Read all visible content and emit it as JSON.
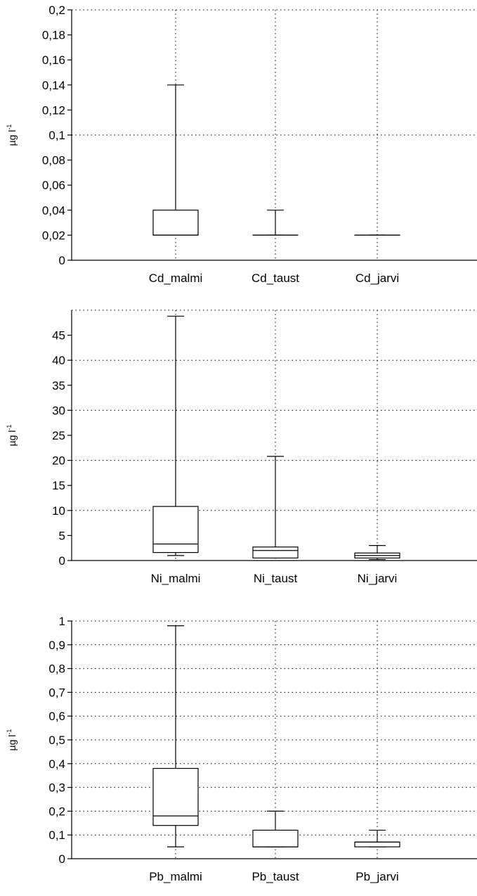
{
  "chart_data": [
    {
      "type": "box",
      "ylabel": "µg l",
      "ylabel_superscript": "-1",
      "ylim": [
        0,
        0.2
      ],
      "yticks": [
        {
          "value": 0,
          "label": "0"
        },
        {
          "value": 0.02,
          "label": "0,02"
        },
        {
          "value": 0.04,
          "label": "0,04"
        },
        {
          "value": 0.06,
          "label": "0,06"
        },
        {
          "value": 0.08,
          "label": "0,08"
        },
        {
          "value": 0.1,
          "label": "0,1"
        },
        {
          "value": 0.12,
          "label": "0,12"
        },
        {
          "value": 0.14,
          "label": "0,14"
        },
        {
          "value": 0.16,
          "label": "0,16"
        },
        {
          "value": 0.18,
          "label": "0,18"
        },
        {
          "value": 0.2,
          "label": "0,2"
        }
      ],
      "horizontal_grid": [
        0.1,
        0.2
      ],
      "boxes": [
        {
          "category": "Cd_malmi",
          "min": 0.02,
          "q1": 0.02,
          "median": 0.02,
          "q3": 0.04,
          "max": 0.14
        },
        {
          "category": "Cd_taust",
          "min": 0.02,
          "q1": 0.02,
          "median": 0.02,
          "q3": 0.02,
          "max": 0.04
        },
        {
          "category": "Cd_jarvi",
          "min": 0.02,
          "q1": 0.02,
          "median": 0.02,
          "q3": 0.02,
          "max": 0.02
        }
      ]
    },
    {
      "type": "box",
      "ylabel": "µg l",
      "ylabel_superscript": "-1",
      "ylim": [
        0,
        50
      ],
      "yticks": [
        {
          "value": 0,
          "label": "0"
        },
        {
          "value": 5,
          "label": "5"
        },
        {
          "value": 10,
          "label": "10"
        },
        {
          "value": 15,
          "label": "15"
        },
        {
          "value": 20,
          "label": "20"
        },
        {
          "value": 25,
          "label": "25"
        },
        {
          "value": 30,
          "label": "30"
        },
        {
          "value": 35,
          "label": "35"
        },
        {
          "value": 40,
          "label": "40"
        },
        {
          "value": 45,
          "label": "45"
        }
      ],
      "horizontal_grid": [
        10,
        20,
        30,
        40,
        50
      ],
      "boxes": [
        {
          "category": "Ni_malmi",
          "min": 1.0,
          "q1": 1.6,
          "median": 3.3,
          "q3": 10.8,
          "max": 48.8
        },
        {
          "category": "Ni_taust",
          "min": 0.5,
          "q1": 0.5,
          "median": 2.0,
          "q3": 2.7,
          "max": 20.8
        },
        {
          "category": "Ni_jarvi",
          "min": 0.2,
          "q1": 0.5,
          "median": 1.0,
          "q3": 1.5,
          "max": 3.0
        }
      ]
    },
    {
      "type": "box",
      "ylabel": "µg l",
      "ylabel_superscript": "-1",
      "ylim": [
        0,
        1
      ],
      "yticks": [
        {
          "value": 0,
          "label": "0"
        },
        {
          "value": 0.1,
          "label": "0,1"
        },
        {
          "value": 0.2,
          "label": "0,2"
        },
        {
          "value": 0.3,
          "label": "0,3"
        },
        {
          "value": 0.4,
          "label": "0,4"
        },
        {
          "value": 0.5,
          "label": "0,5"
        },
        {
          "value": 0.6,
          "label": "0,6"
        },
        {
          "value": 0.7,
          "label": "0,7"
        },
        {
          "value": 0.8,
          "label": "0,8"
        },
        {
          "value": 0.9,
          "label": "0,9"
        },
        {
          "value": 1,
          "label": "1"
        }
      ],
      "horizontal_grid": [
        0.1,
        0.2,
        0.3,
        0.4,
        0.5,
        0.6,
        0.7,
        0.8,
        0.9,
        1.0
      ],
      "boxes": [
        {
          "category": "Pb_malmi",
          "min": 0.05,
          "q1": 0.14,
          "median": 0.18,
          "q3": 0.38,
          "max": 0.98
        },
        {
          "category": "Pb_taust",
          "min": 0.05,
          "q1": 0.05,
          "median": 0.05,
          "q3": 0.12,
          "max": 0.2
        },
        {
          "category": "Pb_jarvi",
          "min": 0.05,
          "q1": 0.05,
          "median": 0.07,
          "q3": 0.07,
          "max": 0.12
        }
      ]
    }
  ]
}
